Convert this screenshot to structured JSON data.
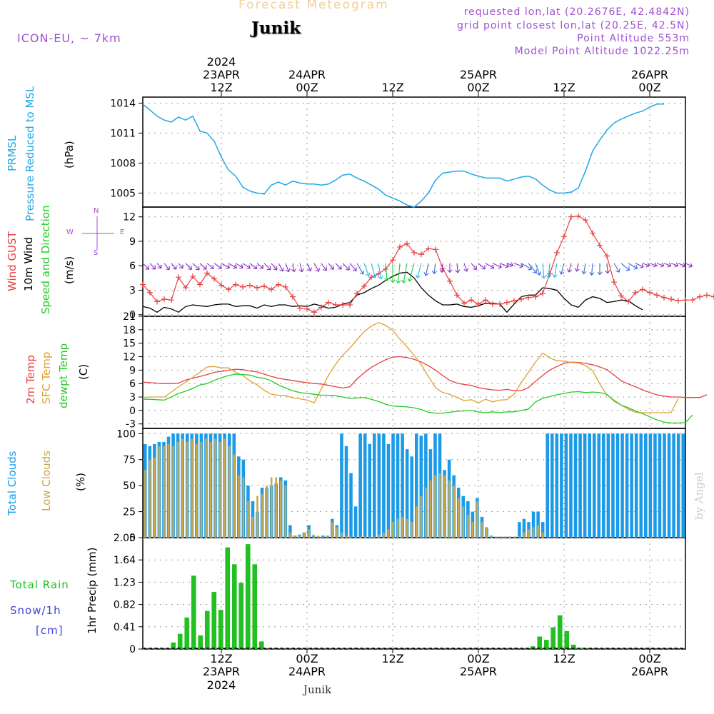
{
  "header": {
    "title": "Forecast Meteogram",
    "location": "Junik",
    "model": "ICON-EU, ~ 7km",
    "requested": "requested lon,lat (20.2676E, 42.4842N)",
    "gridpoint": "grid point closest lon,lat (20.25E, 42.5N)",
    "point_alt": "Point Altitude 553m",
    "model_alt": "Model Point Altitude 1022.25m",
    "footer_location": "Junik",
    "watermark": "by Angel"
  },
  "time_axis": {
    "year": "2024",
    "ticks": [
      {
        "t": 12,
        "top": "23APR",
        "zone": "12Z",
        "year": "2024"
      },
      {
        "t": 24,
        "top": "24APR",
        "zone": "00Z"
      },
      {
        "t": 36,
        "top": "",
        "zone": "12Z"
      },
      {
        "t": 48,
        "top": "25APR",
        "zone": "00Z"
      },
      {
        "t": 60,
        "top": "",
        "zone": "12Z"
      },
      {
        "t": 72,
        "top": "26APR",
        "zone": "00Z"
      }
    ],
    "t_start": 1,
    "t_end": 77
  },
  "panel_labels": {
    "pressure": [
      "PRMSL",
      "Pressure Reduced to MSL",
      "(hPa)"
    ],
    "wind": [
      "Wind GUST",
      "10m Wind",
      "Speed and Direction",
      "(m/s)"
    ],
    "compass": {
      "n": "N",
      "s": "S",
      "w": "W",
      "e": "E"
    },
    "temp": [
      "2m Temp",
      "SFC Temp",
      "dewpt Temp",
      "(C)"
    ],
    "clouds": [
      "Total Clouds",
      "Low Clouds",
      "(%)"
    ],
    "precip": [
      "Total  Rain",
      "Snow/1h",
      "[cm]",
      "1hr Precip (mm)"
    ]
  },
  "colors": {
    "pressure": "#1fa8e6",
    "gust": "#e84040",
    "wind": "#000000",
    "sfc": "#e0a030",
    "dew": "#22cc22",
    "cloud_total": "#1b9ae8",
    "cloud_low": "#c8a850",
    "rain": "#22c022",
    "title": "#f0d0a0",
    "info": "#a050d0",
    "snow": "#4040e0"
  },
  "chart_data": [
    {
      "type": "line",
      "title": "PRMSL Pressure Reduced to MSL",
      "ylabel": "hPa",
      "ylim": [
        1003.6,
        1014.6
      ],
      "yticks": [
        1005,
        1008,
        1011,
        1014
      ],
      "x_start": 1,
      "series": [
        {
          "name": "PRMSL",
          "values": [
            1013.9,
            1013.3,
            1012.7,
            1012.3,
            1012.1,
            1012.6,
            1012.3,
            1012.7,
            1011.2,
            1011.0,
            1010.2,
            1008.6,
            1007.3,
            1006.7,
            1005.6,
            1005.2,
            1005.0,
            1004.9,
            1005.8,
            1006.1,
            1005.8,
            1006.2,
            1006.0,
            1005.9,
            1005.9,
            1005.8,
            1005.9,
            1006.3,
            1006.8,
            1006.9,
            1006.5,
            1006.2,
            1005.8,
            1005.4,
            1004.8,
            1004.5,
            1004.2,
            1003.8,
            1003.6,
            1004.2,
            1005.0,
            1006.3,
            1007.0,
            1007.1,
            1007.2,
            1007.2,
            1006.9,
            1006.7,
            1006.5,
            1006.5,
            1006.5,
            1006.2,
            1006.4,
            1006.6,
            1006.7,
            1006.4,
            1005.8,
            1005.3,
            1005.0,
            1005.0,
            1005.1,
            1005.5,
            1007.2,
            1009.2,
            1010.3,
            1011.3,
            1012.0,
            1012.4,
            1012.7,
            1013.0,
            1013.2,
            1013.6,
            1013.9,
            1013.9
          ]
        }
      ]
    },
    {
      "type": "line",
      "title": "Wind GUST / 10m Wind Speed and Direction",
      "ylabel": "m/s",
      "ylim": [
        -0.2,
        13.2
      ],
      "yticks": [
        0,
        3,
        6,
        9,
        12
      ],
      "x_start": 1,
      "series": [
        {
          "name": "Wind GUST",
          "values": [
            3.7,
            2.7,
            1.6,
            1.9,
            1.8,
            4.6,
            3.3,
            4.7,
            3.7,
            5.1,
            4.4,
            3.6,
            3.1,
            3.7,
            3.4,
            3.6,
            3.3,
            3.5,
            3.1,
            3.7,
            3.4,
            2.2,
            0.8,
            0.7,
            0.3,
            0.9,
            1.5,
            1.2,
            1.2,
            1.2,
            2.6,
            3.5,
            4.6,
            5.0,
            5.6,
            6.7,
            8.3,
            8.7,
            7.6,
            7.4,
            8.1,
            8.0,
            5.7,
            4.1,
            2.4,
            1.4,
            1.8,
            1.3,
            1.8,
            1.3,
            1.3,
            1.5,
            1.7,
            1.9,
            2.1,
            2.2,
            2.6,
            5.0,
            7.6,
            9.6,
            12.0,
            12.1,
            11.6,
            10.0,
            8.5,
            7.2,
            4.0,
            2.3,
            1.6,
            2.7,
            3.1,
            2.7,
            2.4,
            2.1,
            1.9,
            1.7,
            1.8,
            1.8,
            2.2,
            2.4,
            2.2,
            2.5
          ]
        },
        {
          "name": "10m Wind",
          "values": [
            1.0,
            0.8,
            0.3,
            0.9,
            0.7,
            0.3,
            1.0,
            1.2,
            1.1,
            1.0,
            1.2,
            1.3,
            1.3,
            1.0,
            1.1,
            1.1,
            0.8,
            1.2,
            1.0,
            1.2,
            1.2,
            1.0,
            1.1,
            1.0,
            1.3,
            1.1,
            0.8,
            0.9,
            1.3,
            1.5,
            2.4,
            2.7,
            3.2,
            3.6,
            4.2,
            4.7,
            5.1,
            5.2,
            4.5,
            3.3,
            2.4,
            1.7,
            1.2,
            1.2,
            1.3,
            1.0,
            0.9,
            1.1,
            1.4,
            1.4,
            1.3,
            0.3,
            1.3,
            2.2,
            2.4,
            2.4,
            3.3,
            3.2,
            3.0,
            2.0,
            1.2,
            0.9,
            1.8,
            2.2,
            2.0,
            1.5,
            1.6,
            1.8,
            1.7,
            1.1,
            0.6
          ]
        }
      ],
      "direction_deg": [
        315,
        318,
        320,
        322,
        320,
        318,
        316,
        315,
        312,
        310,
        305,
        300,
        300,
        302,
        304,
        308,
        310,
        315,
        320,
        330,
        340,
        350,
        345,
        335,
        330,
        325,
        320,
        315,
        315,
        320,
        330,
        340,
        345,
        350,
        355,
        0,
        5,
        10,
        15,
        15,
        12,
        8,
        5,
        0,
        355,
        340,
        320,
        310,
        300,
        295,
        290,
        290,
        290,
        300,
        320,
        340,
        355,
        5,
        10,
        15,
        15,
        12,
        10,
        5,
        0,
        355,
        330,
        310,
        300,
        295,
        290,
        290,
        290,
        290,
        290,
        292,
        295,
        298,
        300,
        300,
        302
      ]
    },
    {
      "type": "line",
      "title": "2m Temp / SFC Temp / dewpt Temp",
      "ylabel": "C",
      "ylim": [
        -4,
        21
      ],
      "yticks": [
        -3,
        0,
        3,
        6,
        9,
        12,
        15,
        18,
        21
      ],
      "x_start": 1,
      "series": [
        {
          "name": "2m Temp",
          "values": [
            6.3,
            6.2,
            6.1,
            6.0,
            6.0,
            6.1,
            6.8,
            7.2,
            7.6,
            8.0,
            8.5,
            8.7,
            9.0,
            9.2,
            9.1,
            8.8,
            8.6,
            8.1,
            7.6,
            7.2,
            6.9,
            6.7,
            6.4,
            6.2,
            6.0,
            5.9,
            5.6,
            5.3,
            5.0,
            5.3,
            7.0,
            8.4,
            9.6,
            10.5,
            11.3,
            11.9,
            12.0,
            11.8,
            11.4,
            10.8,
            10.0,
            9.0,
            7.8,
            6.7,
            6.1,
            5.8,
            5.6,
            5.1,
            4.8,
            4.6,
            4.5,
            4.7,
            4.4,
            4.4,
            5.1,
            6.5,
            7.8,
            9.0,
            9.8,
            10.5,
            10.8,
            10.7,
            10.5,
            10.2,
            9.7,
            9.1,
            7.9,
            6.6,
            5.9,
            5.3,
            4.6,
            4.0,
            3.5,
            3.2,
            3.0,
            3.0,
            2.9,
            2.9,
            2.9,
            3.5
          ]
        },
        {
          "name": "SFC Temp",
          "values": [
            2.9,
            3.0,
            3.0,
            3.0,
            4.1,
            5.3,
            6.3,
            7.4,
            8.5,
            9.7,
            9.8,
            9.5,
            9.5,
            8.5,
            7.8,
            6.6,
            5.7,
            4.5,
            3.6,
            3.4,
            3.3,
            2.8,
            2.6,
            2.3,
            1.7,
            4.8,
            7.8,
            10.3,
            12.3,
            13.9,
            15.8,
            17.6,
            18.8,
            19.6,
            19.0,
            17.9,
            15.9,
            14.2,
            12.3,
            10.2,
            7.6,
            5.1,
            4.0,
            3.6,
            2.9,
            2.2,
            2.4,
            1.7,
            2.5,
            1.9,
            2.3,
            2.4,
            3.6,
            6.2,
            8.5,
            10.8,
            12.8,
            11.7,
            11.1,
            11.0,
            10.7,
            10.6,
            10.0,
            8.9,
            5.9,
            3.4,
            2.3,
            1.2,
            0.3,
            -0.4,
            -0.5,
            -0.5,
            -0.5,
            -0.5,
            -0.5,
            2.7
          ]
        },
        {
          "name": "dewpt Temp",
          "values": [
            2.5,
            2.5,
            2.4,
            2.3,
            3.0,
            3.8,
            4.3,
            4.9,
            5.7,
            6.0,
            6.7,
            7.3,
            7.8,
            8.1,
            8.0,
            7.9,
            7.4,
            7.2,
            6.6,
            5.7,
            5.0,
            4.4,
            4.0,
            3.8,
            3.6,
            3.4,
            3.4,
            3.3,
            3.0,
            2.7,
            2.8,
            2.9,
            2.5,
            2.0,
            1.4,
            1.0,
            0.9,
            0.8,
            0.6,
            0.2,
            -0.4,
            -0.6,
            -0.6,
            -0.4,
            -0.2,
            -0.1,
            0.0,
            -0.3,
            -0.5,
            -0.3,
            -0.5,
            -0.3,
            -0.3,
            0.0,
            0.3,
            1.9,
            2.7,
            3.1,
            3.5,
            3.8,
            4.1,
            4.2,
            4.0,
            4.1,
            4.0,
            3.6,
            2.1,
            1.2,
            0.6,
            -0.1,
            -0.7,
            -1.4,
            -2.1,
            -2.6,
            -2.8,
            -2.8,
            -2.7,
            -1.0
          ]
        }
      ]
    },
    {
      "type": "bar",
      "title": "Total Clouds / Low Clouds",
      "ylabel": "%",
      "ylim": [
        0,
        105
      ],
      "yticks": [
        0,
        25,
        50,
        75,
        100
      ],
      "x_start": 0,
      "series": [
        {
          "name": "Total Clouds",
          "values": [
            90,
            88,
            90,
            92,
            92,
            97,
            100,
            100,
            100,
            100,
            100,
            100,
            100,
            100,
            100,
            100,
            100,
            100,
            100,
            100,
            100,
            100,
            100,
            100,
            100,
            100,
            100,
            100,
            100,
            100,
            100,
            100,
            100,
            100,
            100,
            100,
            100,
            100,
            100,
            100,
            100,
            100,
            100,
            100,
            100,
            100,
            100,
            100,
            100,
            100,
            100,
            100,
            100,
            100,
            100,
            100,
            100,
            100,
            100,
            100,
            100,
            100,
            100,
            100,
            100,
            100,
            100,
            100,
            100,
            100,
            100,
            100,
            100,
            100,
            100,
            100,
            100,
            100,
            100,
            100,
            100,
            100,
            100,
            100,
            100,
            100,
            100,
            100,
            100,
            100,
            100,
            100,
            100,
            100,
            100,
            100,
            100,
            100,
            100,
            100,
            100,
            100,
            100,
            100,
            100,
            100,
            100,
            100,
            100,
            100,
            100,
            100,
            100,
            100,
            100,
            100
          ]
        },
        {
          "name": "Low Clouds",
          "values": [
            65,
            75,
            77,
            88,
            88,
            90,
            88,
            92,
            95,
            92,
            95,
            90,
            92,
            95,
            92,
            95,
            92,
            95,
            88,
            80,
            60,
            58,
            35,
            20,
            40,
            42,
            50,
            58,
            58,
            55,
            50,
            5,
            2,
            3,
            5,
            8,
            3,
            2,
            1,
            2,
            15,
            10,
            5,
            2,
            1,
            1,
            1,
            1,
            1,
            1,
            3,
            5,
            8,
            15,
            18,
            20,
            18,
            15,
            30,
            40,
            48,
            55,
            60,
            62,
            60,
            55,
            50,
            38,
            30,
            22,
            15,
            35,
            15,
            10,
            2,
            1,
            1,
            1,
            1,
            1,
            1,
            5,
            8,
            10,
            12,
            5
          ]
        }
      ]
    },
    {
      "type": "bar",
      "title": "Total Rain / Snow 1h",
      "ylabel": "1hr Precip (mm)",
      "ylim": [
        0,
        2.05
      ],
      "yticks": [
        0,
        0.41,
        0.82,
        1.23,
        1.64,
        2.05
      ],
      "yticklabels": [
        "0",
        "0.41",
        "0.82",
        "1.23",
        "1.64",
        "2.05"
      ],
      "x_start": 0,
      "series": [
        {
          "name": "Total Rain",
          "values": [
            0,
            0,
            0,
            0,
            0.12,
            0.28,
            0.58,
            1.35,
            0.25,
            0.7,
            1.05,
            0.72,
            1.87,
            1.56,
            1.22,
            1.93,
            1.56,
            0.14,
            0,
            0,
            0,
            0,
            0,
            0,
            0,
            0,
            0,
            0,
            0,
            0,
            0,
            0,
            0,
            0,
            0,
            0,
            0,
            0,
            0,
            0,
            0,
            0,
            0,
            0,
            0,
            0,
            0,
            0,
            0,
            0,
            0,
            0,
            0,
            0,
            0,
            0,
            0,
            0.05,
            0.23,
            0.17,
            0.4,
            0.62,
            0.33,
            0.08,
            0.02,
            0,
            0,
            0,
            0,
            0,
            0,
            0,
            0,
            0,
            0,
            0,
            0,
            0,
            0,
            0
          ]
        }
      ]
    }
  ]
}
